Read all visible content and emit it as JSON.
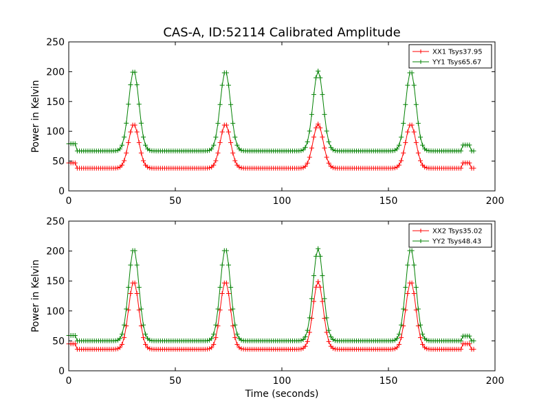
{
  "figure": {
    "title": "CAS-A, ID:52114 Calibrated Amplitude",
    "xlabel": "Time (seconds)"
  },
  "colors": {
    "xx": "#ff0000",
    "yy": "#008000",
    "axes": "#000000",
    "background": "#ffffff"
  },
  "chart_data": [
    {
      "type": "line",
      "title": "CAS-A, ID:52114 Calibrated Amplitude",
      "xlabel": "",
      "ylabel": "Power in Kelvin",
      "xlim": [
        0,
        200
      ],
      "ylim": [
        0,
        250
      ],
      "xticks": [
        "0",
        "50",
        "100",
        "150",
        "200"
      ],
      "yticks": [
        "0",
        "50",
        "100",
        "150",
        "200",
        "250"
      ],
      "grid": false,
      "legend_position": "top-right",
      "marker": "+",
      "series": [
        {
          "name": "XX1 Tsys37.95",
          "color": "#ff0000",
          "baseline": 38,
          "start_level": 47,
          "end_bump": 47,
          "peaks": [
            {
              "center": 30.5,
              "height": 112
            },
            {
              "center": 73.5,
              "height": 112
            },
            {
              "center": 117,
              "height": 112
            },
            {
              "center": 160.5,
              "height": 112
            }
          ]
        },
        {
          "name": "YY1 Tsys65.67",
          "color": "#008000",
          "baseline": 67,
          "start_level": 79,
          "end_bump": 77,
          "peaks": [
            {
              "center": 30.5,
              "height": 202
            },
            {
              "center": 73.5,
              "height": 201
            },
            {
              "center": 117,
              "height": 201
            },
            {
              "center": 160.5,
              "height": 201
            }
          ]
        }
      ]
    },
    {
      "type": "line",
      "title": "",
      "xlabel": "Time (seconds)",
      "ylabel": "Power in Kelvin",
      "xlim": [
        0,
        200
      ],
      "ylim": [
        0,
        250
      ],
      "xticks": [
        "0",
        "50",
        "100",
        "150",
        "200"
      ],
      "yticks": [
        "0",
        "50",
        "100",
        "150",
        "200",
        "250"
      ],
      "grid": false,
      "legend_position": "top-right",
      "marker": "+",
      "series": [
        {
          "name": "XX2 Tsys35.02",
          "color": "#ff0000",
          "baseline": 36,
          "start_level": 45,
          "end_bump": 45,
          "peaks": [
            {
              "center": 30.5,
              "height": 149
            },
            {
              "center": 73.5,
              "height": 149
            },
            {
              "center": 117,
              "height": 149
            },
            {
              "center": 160.5,
              "height": 149
            }
          ]
        },
        {
          "name": "YY2 Tsys48.43",
          "color": "#008000",
          "baseline": 50,
          "start_level": 59,
          "end_bump": 58,
          "peaks": [
            {
              "center": 30.5,
              "height": 204
            },
            {
              "center": 73.5,
              "height": 204
            },
            {
              "center": 117,
              "height": 204
            },
            {
              "center": 160.5,
              "height": 204
            }
          ]
        }
      ]
    }
  ]
}
